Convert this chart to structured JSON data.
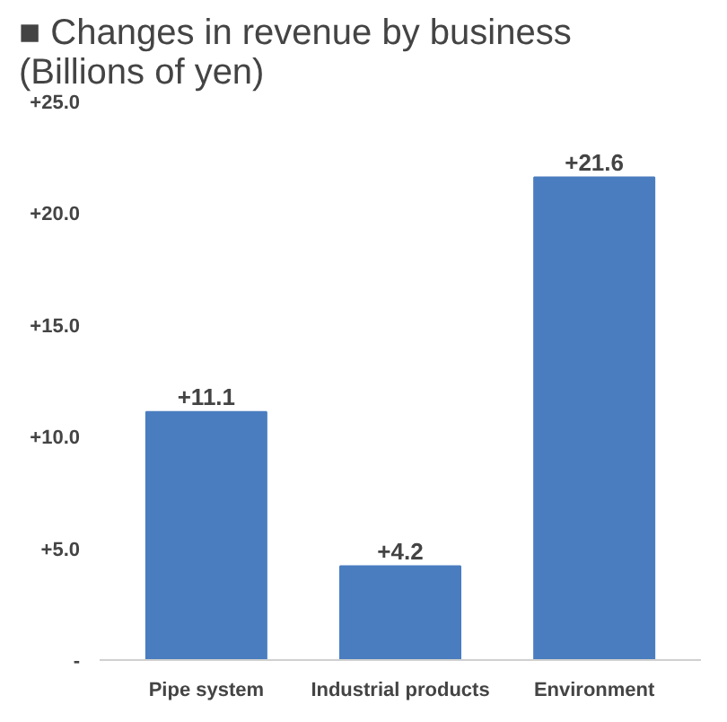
{
  "chart_data": {
    "type": "bar",
    "title": "■ Changes in revenue by business\n(Billions of yen)",
    "categories": [
      "Pipe system",
      "Industrial products",
      "Environment"
    ],
    "values": [
      11.1,
      4.2,
      21.6
    ],
    "value_labels": [
      "+11.1",
      "+4.2",
      "+21.6"
    ],
    "color": "#4a7dc0",
    "ylim": [
      0,
      25
    ],
    "yticks": [
      {
        "value": 0,
        "label": "-"
      },
      {
        "value": 5,
        "label": "+5.0"
      },
      {
        "value": 10,
        "label": "+10.0"
      },
      {
        "value": 15,
        "label": "+15.0"
      },
      {
        "value": 20,
        "label": "+20.0"
      },
      {
        "value": 25,
        "label": "+25.0"
      }
    ],
    "grid": false
  }
}
